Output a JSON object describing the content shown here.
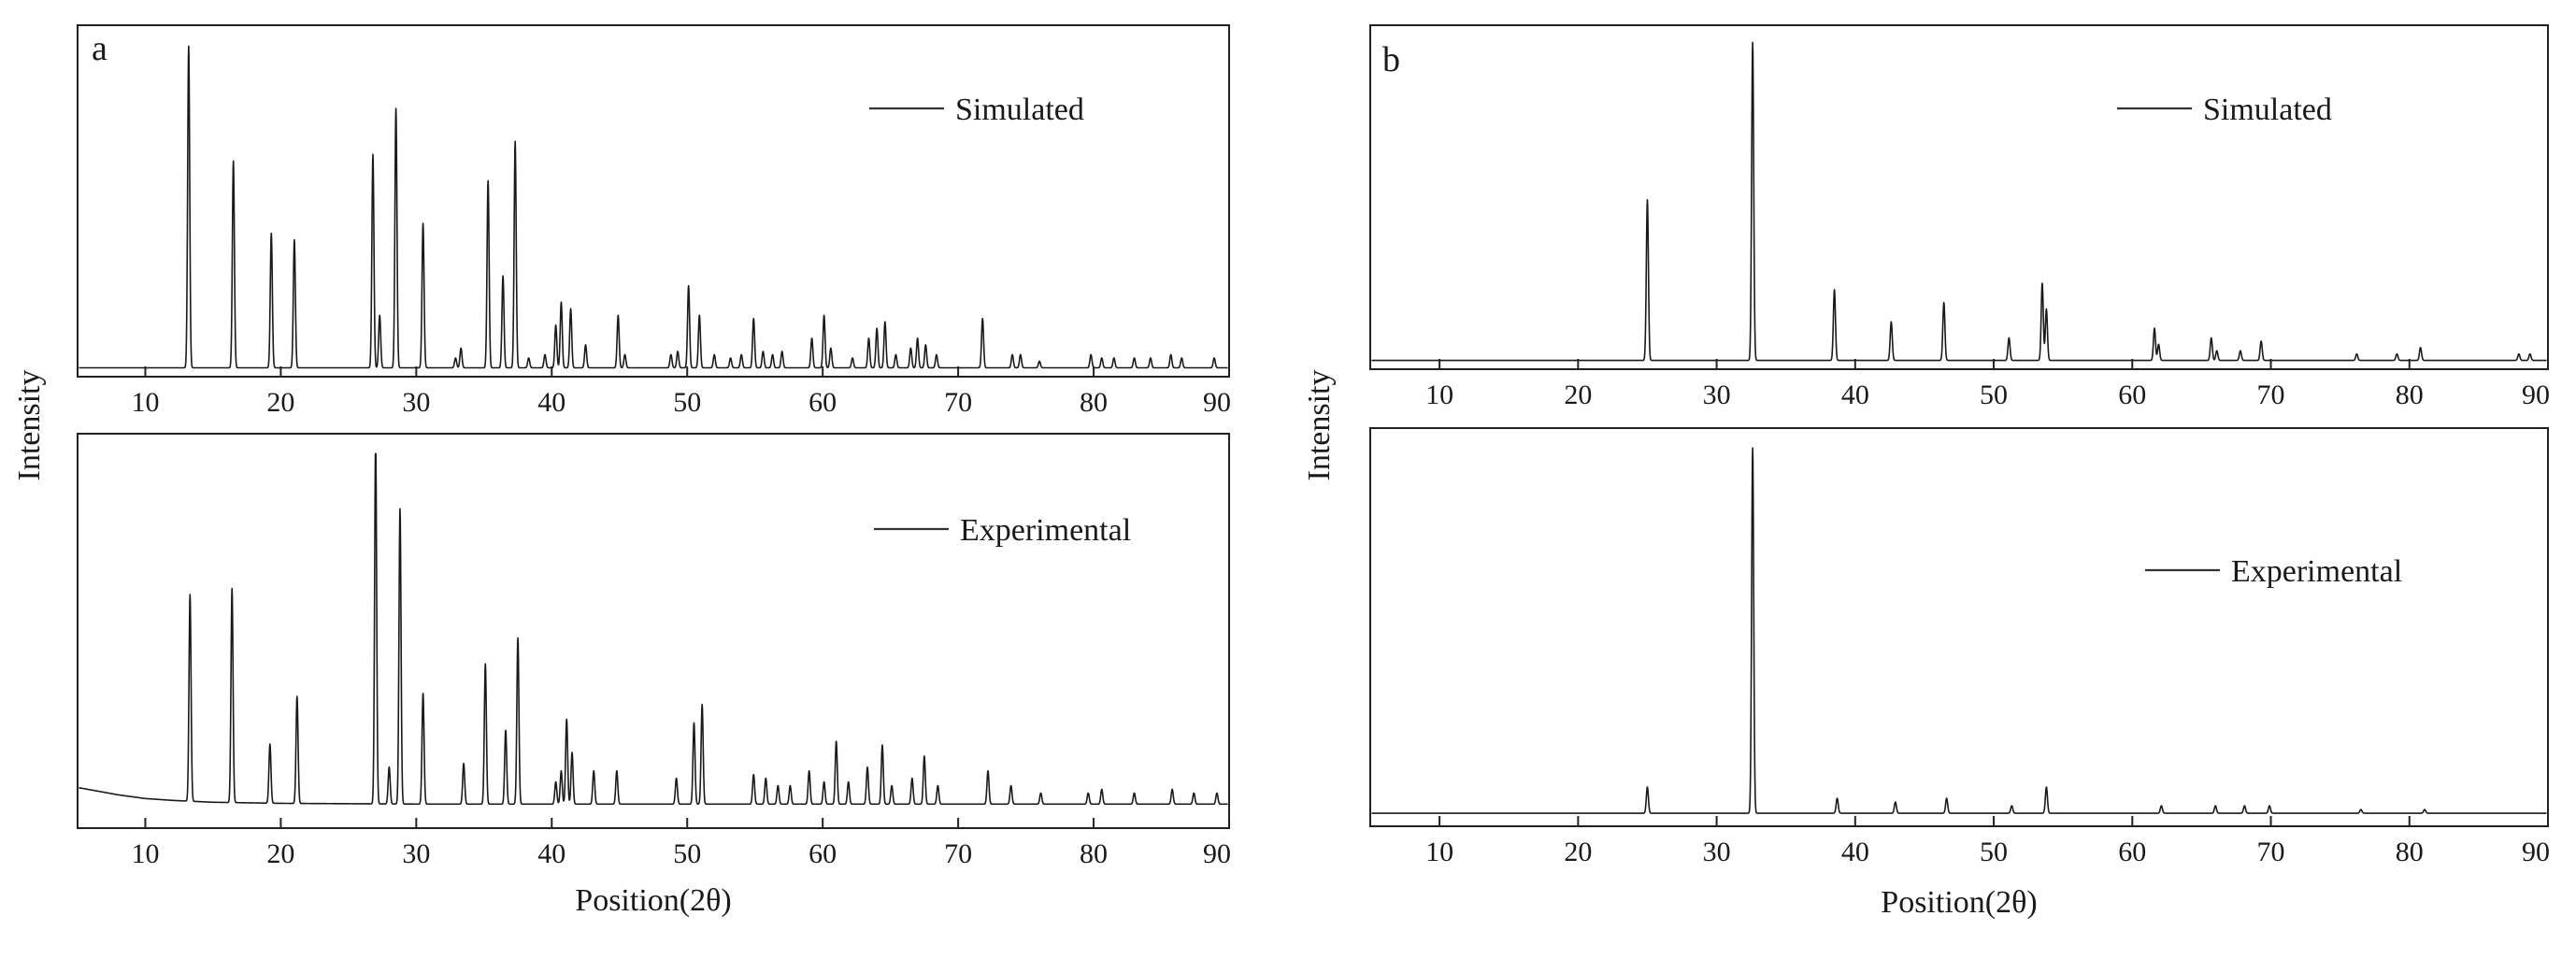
{
  "panels": [
    {
      "letter": "a",
      "ylabel": "Intensity",
      "xlabel": "Position(2θ)"
    },
    {
      "letter": "b",
      "ylabel": "Intensity",
      "xlabel": "Position(2θ)"
    }
  ],
  "chart_data": [
    {
      "type": "line",
      "panel": "a",
      "subplot": "top",
      "series_name": "Simulated",
      "legend": "Simulated",
      "legend_position": "top-right",
      "xlim": [
        5,
        90
      ],
      "ylim": [
        0,
        100
      ],
      "xticks": [
        10,
        20,
        30,
        40,
        50,
        60,
        70,
        80,
        90
      ],
      "xlabel": "Position(2θ)",
      "ylabel": "Intensity",
      "baseline": 1,
      "peaks": [
        [
          13.2,
          98
        ],
        [
          16.5,
          63
        ],
        [
          19.3,
          41
        ],
        [
          21.0,
          39
        ],
        [
          26.8,
          65
        ],
        [
          27.3,
          16
        ],
        [
          28.5,
          79
        ],
        [
          30.5,
          44
        ],
        [
          32.9,
          3
        ],
        [
          33.3,
          6
        ],
        [
          35.3,
          57
        ],
        [
          36.4,
          28
        ],
        [
          37.3,
          69
        ],
        [
          38.3,
          3
        ],
        [
          39.5,
          4
        ],
        [
          40.3,
          13
        ],
        [
          40.7,
          20
        ],
        [
          41.4,
          18
        ],
        [
          42.5,
          7
        ],
        [
          44.9,
          16
        ],
        [
          45.4,
          4
        ],
        [
          48.8,
          4
        ],
        [
          49.3,
          5
        ],
        [
          50.1,
          25
        ],
        [
          50.9,
          16
        ],
        [
          52.0,
          4
        ],
        [
          53.2,
          3
        ],
        [
          54.0,
          4
        ],
        [
          54.9,
          15
        ],
        [
          55.6,
          5
        ],
        [
          56.3,
          4
        ],
        [
          57.0,
          5
        ],
        [
          59.2,
          9
        ],
        [
          60.1,
          16
        ],
        [
          60.6,
          6
        ],
        [
          62.2,
          3
        ],
        [
          63.4,
          9
        ],
        [
          64.0,
          12
        ],
        [
          64.6,
          14
        ],
        [
          65.4,
          4
        ],
        [
          66.5,
          6
        ],
        [
          67.0,
          9
        ],
        [
          67.6,
          7
        ],
        [
          68.4,
          4
        ],
        [
          71.8,
          15
        ],
        [
          74.0,
          4
        ],
        [
          74.6,
          4
        ],
        [
          76.0,
          2
        ],
        [
          79.8,
          4
        ],
        [
          80.6,
          3
        ],
        [
          81.5,
          3
        ],
        [
          83.0,
          3
        ],
        [
          84.2,
          3
        ],
        [
          85.7,
          4
        ],
        [
          86.5,
          3
        ],
        [
          88.9,
          3
        ]
      ]
    },
    {
      "type": "line",
      "panel": "a",
      "subplot": "bottom",
      "series_name": "Experimental",
      "legend": "Experimental",
      "legend_position": "top-right",
      "xlim": [
        5,
        90
      ],
      "ylim": [
        0,
        100
      ],
      "xticks": [
        10,
        20,
        30,
        40,
        50,
        60,
        70,
        80,
        90
      ],
      "xlabel": "Position(2θ)",
      "ylabel": "Intensity",
      "baseline": 2.5,
      "background_hump": [
        [
          5,
          7
        ],
        [
          6.5,
          6
        ],
        [
          8,
          5
        ],
        [
          10,
          4
        ],
        [
          12,
          3.5
        ],
        [
          15,
          3
        ],
        [
          20,
          2.7
        ],
        [
          30,
          2.5
        ],
        [
          90,
          2.5
        ]
      ],
      "peaks": [
        [
          13.3,
          56
        ],
        [
          16.4,
          58
        ],
        [
          19.2,
          16
        ],
        [
          21.2,
          29
        ],
        [
          27.0,
          98
        ],
        [
          28.0,
          10
        ],
        [
          28.8,
          80
        ],
        [
          30.5,
          30
        ],
        [
          33.5,
          11
        ],
        [
          35.1,
          38
        ],
        [
          36.6,
          20
        ],
        [
          37.5,
          45
        ],
        [
          40.3,
          6
        ],
        [
          40.7,
          9
        ],
        [
          41.1,
          23
        ],
        [
          41.5,
          14
        ],
        [
          43.1,
          9
        ],
        [
          44.8,
          9
        ],
        [
          49.2,
          7
        ],
        [
          50.5,
          22
        ],
        [
          51.1,
          27
        ],
        [
          54.9,
          8
        ],
        [
          55.8,
          7
        ],
        [
          56.7,
          5
        ],
        [
          57.6,
          5
        ],
        [
          59.0,
          9
        ],
        [
          60.1,
          6
        ],
        [
          61.0,
          17
        ],
        [
          61.9,
          6
        ],
        [
          63.3,
          10
        ],
        [
          64.4,
          16
        ],
        [
          65.1,
          5
        ],
        [
          66.6,
          7
        ],
        [
          67.5,
          13
        ],
        [
          68.5,
          5
        ],
        [
          72.2,
          9
        ],
        [
          73.9,
          5
        ],
        [
          76.1,
          3
        ],
        [
          79.6,
          3
        ],
        [
          80.6,
          4
        ],
        [
          83.0,
          3
        ],
        [
          85.8,
          4
        ],
        [
          87.4,
          3
        ],
        [
          89.1,
          3
        ]
      ]
    },
    {
      "type": "line",
      "panel": "b",
      "subplot": "top",
      "series_name": "Simulated",
      "legend": "Simulated",
      "legend_position": "top-right",
      "xlim": [
        5,
        90
      ],
      "ylim": [
        0,
        100
      ],
      "xticks": [
        10,
        20,
        30,
        40,
        50,
        60,
        70,
        80,
        90
      ],
      "xlabel": "Position(2θ)",
      "ylabel": "Intensity",
      "baseline": 1,
      "peaks": [
        [
          25.0,
          50
        ],
        [
          32.6,
          99
        ],
        [
          38.5,
          22
        ],
        [
          42.6,
          12
        ],
        [
          46.4,
          18
        ],
        [
          51.1,
          7
        ],
        [
          53.5,
          24
        ],
        [
          53.8,
          16
        ],
        [
          61.6,
          10
        ],
        [
          61.9,
          5
        ],
        [
          65.7,
          7
        ],
        [
          66.1,
          3
        ],
        [
          67.8,
          3
        ],
        [
          69.3,
          6
        ],
        [
          76.2,
          2
        ],
        [
          79.1,
          2
        ],
        [
          80.8,
          4
        ],
        [
          87.9,
          2
        ],
        [
          88.7,
          2
        ]
      ]
    },
    {
      "type": "line",
      "panel": "b",
      "subplot": "bottom",
      "series_name": "Experimental",
      "legend": "Experimental",
      "legend_position": "top-right",
      "xlim": [
        5,
        90
      ],
      "ylim": [
        0,
        100
      ],
      "xticks": [
        10,
        20,
        30,
        40,
        50,
        60,
        70,
        80,
        90
      ],
      "xlabel": "Position(2θ)",
      "ylabel": "Intensity",
      "baseline": 2,
      "peaks": [
        [
          25.0,
          7
        ],
        [
          32.6,
          98
        ],
        [
          38.7,
          4
        ],
        [
          42.9,
          3
        ],
        [
          46.6,
          4
        ],
        [
          51.3,
          2
        ],
        [
          53.8,
          7
        ],
        [
          62.1,
          2
        ],
        [
          66.0,
          2
        ],
        [
          68.1,
          2
        ],
        [
          69.9,
          2
        ],
        [
          76.5,
          1
        ],
        [
          81.1,
          1
        ]
      ]
    }
  ]
}
